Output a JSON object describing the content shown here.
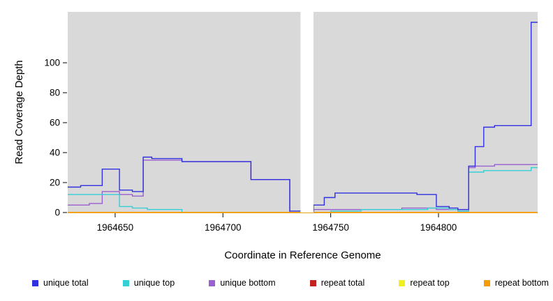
{
  "chart_data": {
    "type": "line",
    "subtype": "step-after",
    "title": "",
    "xlabel": "Coordinate in Reference Genome",
    "ylabel": "Read Coverage Depth",
    "xlim": [
      1964628,
      1964846
    ],
    "ylim": [
      0,
      134
    ],
    "x_ticks": [
      1964650,
      1964700,
      1964750,
      1964800
    ],
    "y_ticks": [
      0,
      20,
      40,
      60,
      80,
      100
    ],
    "plot_bg": "#d9d9d9",
    "grid": false,
    "legend_position": "bottom",
    "gap_regions": [
      [
        1964736,
        1964742
      ]
    ],
    "draw_order": [
      2,
      1,
      0,
      3,
      4,
      5
    ],
    "series": [
      {
        "name": "unique total",
        "color": "#3030e0",
        "points": [
          [
            1964628,
            17
          ],
          [
            1964634,
            18
          ],
          [
            1964644,
            29
          ],
          [
            1964652,
            15
          ],
          [
            1964658,
            14
          ],
          [
            1964663,
            37
          ],
          [
            1964667,
            36
          ],
          [
            1964681,
            34
          ],
          [
            1964713,
            22
          ],
          [
            1964731,
            1
          ],
          [
            1964742,
            5
          ],
          [
            1964747,
            10
          ],
          [
            1964752,
            13
          ],
          [
            1964790,
            12
          ],
          [
            1964799,
            4
          ],
          [
            1964805,
            3
          ],
          [
            1964809,
            2
          ],
          [
            1964814,
            31
          ],
          [
            1964817,
            44
          ],
          [
            1964821,
            57
          ],
          [
            1964826,
            58
          ],
          [
            1964843,
            127
          ]
        ]
      },
      {
        "name": "unique top",
        "color": "#35cfd8",
        "points": [
          [
            1964628,
            12
          ],
          [
            1964652,
            4
          ],
          [
            1964658,
            3
          ],
          [
            1964665,
            2
          ],
          [
            1964681,
            0
          ],
          [
            1964750,
            1
          ],
          [
            1964764,
            2
          ],
          [
            1964795,
            3
          ],
          [
            1964805,
            2
          ],
          [
            1964809,
            1
          ],
          [
            1964814,
            27
          ],
          [
            1964821,
            28
          ],
          [
            1964843,
            30
          ]
        ]
      },
      {
        "name": "unique bottom",
        "color": "#9a5fd0",
        "points": [
          [
            1964628,
            5
          ],
          [
            1964638,
            6
          ],
          [
            1964644,
            14
          ],
          [
            1964652,
            12
          ],
          [
            1964658,
            11
          ],
          [
            1964663,
            35
          ],
          [
            1964681,
            34
          ],
          [
            1964713,
            22
          ],
          [
            1964731,
            0
          ],
          [
            1964742,
            2
          ],
          [
            1964783,
            3
          ],
          [
            1964799,
            2
          ],
          [
            1964809,
            1
          ],
          [
            1964814,
            30
          ],
          [
            1964817,
            31
          ],
          [
            1964826,
            32
          ],
          [
            1964843,
            32
          ]
        ]
      },
      {
        "name": "repeat total",
        "color": "#c22121",
        "points": [
          [
            1964628,
            0
          ]
        ]
      },
      {
        "name": "repeat top",
        "color": "#f0f01e",
        "points": [
          [
            1964628,
            0
          ]
        ]
      },
      {
        "name": "repeat bottom",
        "color": "#f59b00",
        "points": [
          [
            1964628,
            0
          ]
        ]
      }
    ]
  }
}
